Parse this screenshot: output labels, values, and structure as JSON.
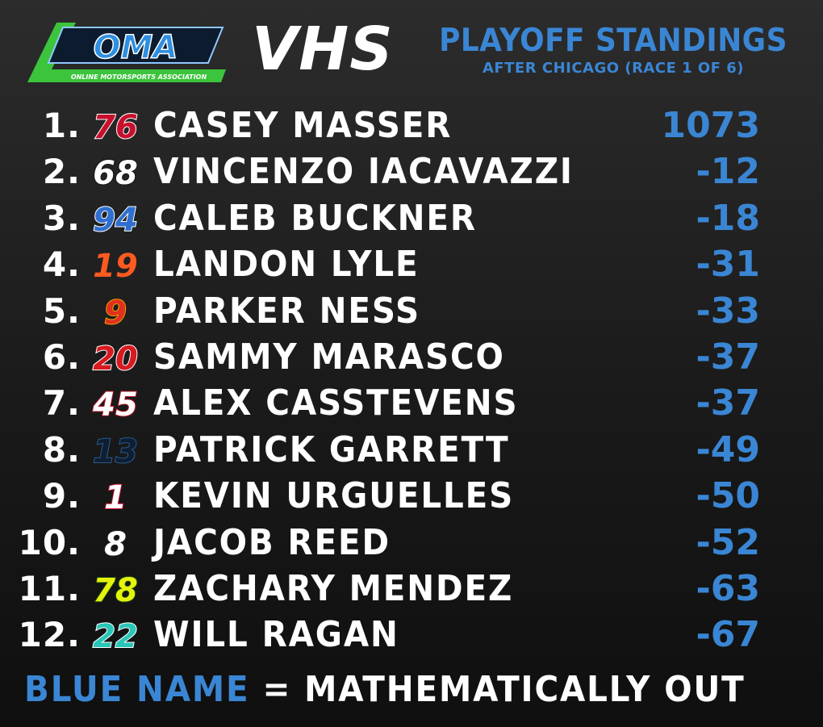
{
  "logo": {
    "letters": "OMA",
    "tagline": "ONLINE MOTORSPORTS ASSOCIATION"
  },
  "league": "VHS",
  "header": {
    "title": "PLAYOFF STANDINGS",
    "subtitle": "AFTER CHICAGO (RACE 1 OF 6)"
  },
  "standings": [
    {
      "pos": "1.",
      "number": "76",
      "number_color": "#c8102e",
      "number_outline": "#ffffff",
      "name": "CASEY MASSER",
      "points": "1073"
    },
    {
      "pos": "2.",
      "number": "68",
      "number_color": "#ffffff",
      "number_outline": "#111111",
      "name": "VINCENZO IACAVAZZI",
      "points": "-12"
    },
    {
      "pos": "3.",
      "number": "94",
      "number_color": "#2f6fd0",
      "number_outline": "#ffffff",
      "name": "CALEB BUCKNER",
      "points": "-18"
    },
    {
      "pos": "4.",
      "number": "19",
      "number_color": "#ff5a1f",
      "number_outline": "#222222",
      "name": "LANDON LYLE",
      "points": "-31"
    },
    {
      "pos": "5.",
      "number": "9",
      "number_color": "#e0301e",
      "number_outline": "#f2a000",
      "name": "PARKER NESS",
      "points": "-33"
    },
    {
      "pos": "6.",
      "number": "20",
      "number_color": "#d71920",
      "number_outline": "#ffffff",
      "name": "SAMMY MARASCO",
      "points": "-37"
    },
    {
      "pos": "7.",
      "number": "45",
      "number_color": "#ffffff",
      "number_outline": "#b0182a",
      "name": "ALEX CASSTEVENS",
      "points": "-37"
    },
    {
      "pos": "8.",
      "number": "13",
      "number_color": "#0e1f33",
      "number_outline": "#2a5a8a",
      "name": "PATRICK GARRETT",
      "points": "-49"
    },
    {
      "pos": "9.",
      "number": "1",
      "number_color": "#ffffff",
      "number_outline": "#c8102e",
      "name": "KEVIN URGUELLES",
      "points": "-50"
    },
    {
      "pos": "10.",
      "number": "8",
      "number_color": "#ffffff",
      "number_outline": "#222222",
      "name": "JACOB REED",
      "points": "-52"
    },
    {
      "pos": "11.",
      "number": "78",
      "number_color": "#e6f20a",
      "number_outline": "#1a4a1a",
      "name": "ZACHARY MENDEZ",
      "points": "-63"
    },
    {
      "pos": "12.",
      "number": "22",
      "number_color": "#2ac6b8",
      "number_outline": "#ffffff",
      "name": "WILL RAGAN",
      "points": "-67"
    }
  ],
  "footer": {
    "blue_part": "BLUE NAME",
    "white_part": " = MATHEMATICALLY OUT"
  },
  "colors": {
    "accent": "#3a86d4",
    "logo_green": "#3cc43c",
    "logo_blue": "#2f8fe0"
  }
}
